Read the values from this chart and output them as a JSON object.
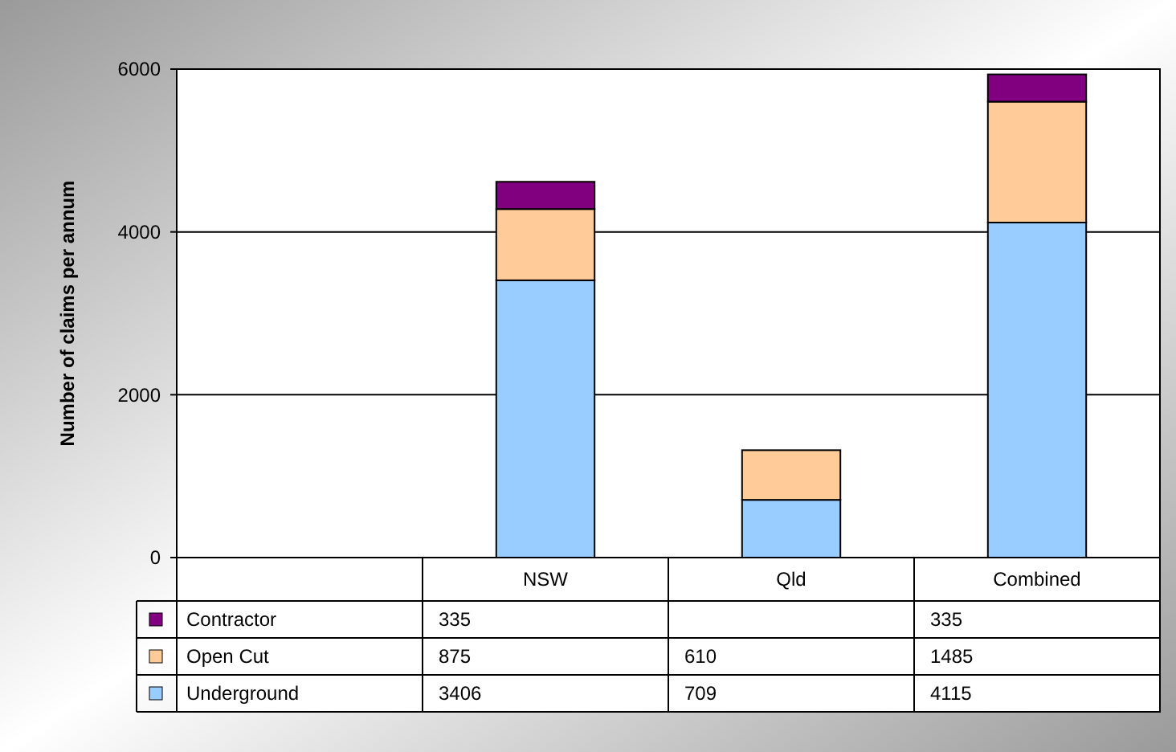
{
  "chart_data": {
    "type": "bar",
    "stacked": true,
    "ylabel": "Number of claims per annum",
    "categories": [
      null,
      "NSW",
      "Qld",
      "Combined"
    ],
    "series": [
      {
        "name": "Underground",
        "color": "#99ccff",
        "values": [
          null,
          3406,
          709,
          4115
        ]
      },
      {
        "name": "Open Cut",
        "color": "#ffcc99",
        "values": [
          null,
          875,
          610,
          1485
        ]
      },
      {
        "name": "Contractor",
        "color": "#800080",
        "values": [
          null,
          335,
          null,
          335
        ]
      }
    ],
    "ylim": [
      0,
      6000
    ],
    "yticks": [
      0,
      2000,
      4000,
      6000
    ],
    "grid": "y",
    "legend": "bottom left",
    "data_labels": true
  }
}
